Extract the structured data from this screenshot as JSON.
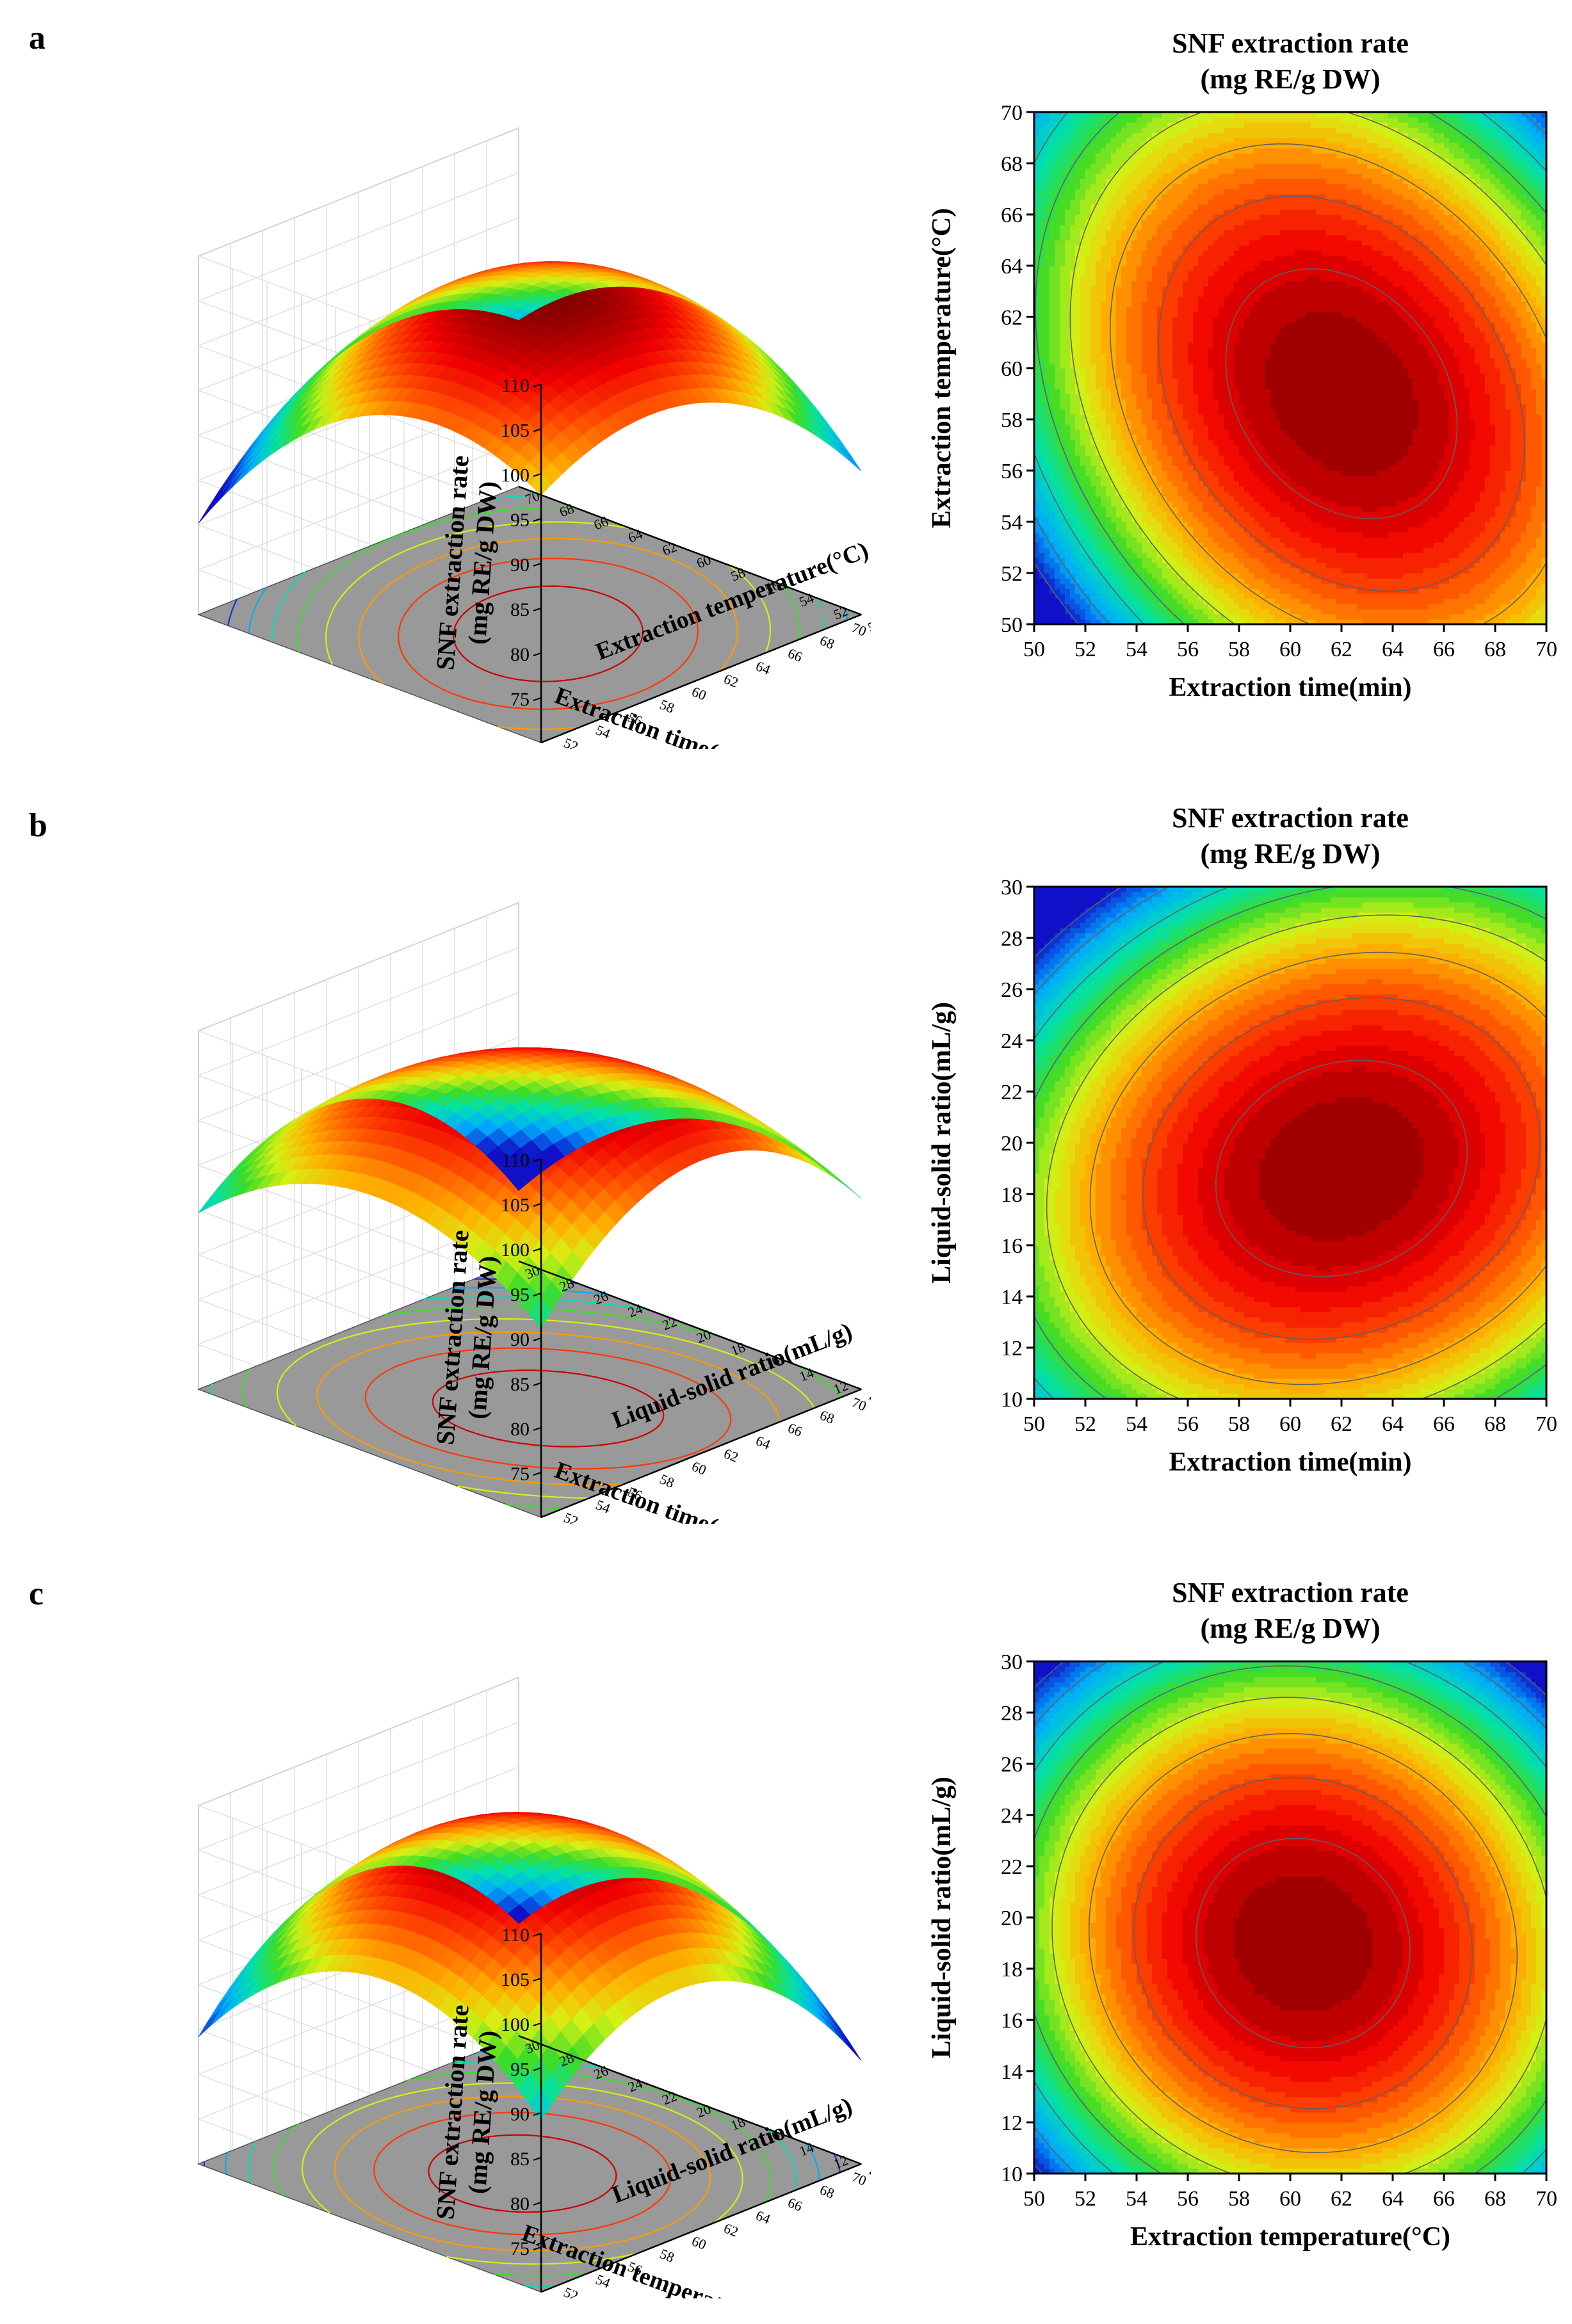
{
  "colors": {
    "surface_low": "#1a1aff",
    "surface_high": "#8b0000",
    "base_plane": "#999999"
  },
  "chart_data": [
    {
      "panel_label": "a",
      "type": "surface3d+contour",
      "title_line1": "SNF extraction rate",
      "title_line2": "(mg RE/g DW)",
      "zlabel_line1": "SNF extraction rate",
      "zlabel_line2": "(mg RE/g DW)",
      "xlabel": "Extraction time(min)",
      "ylabel": "Extraction temperature(°C)",
      "surf_xlabel": "Extraction time(min)",
      "surf_ylabel": "Extraction temperature(°C)",
      "xlim": [
        50,
        70
      ],
      "ylim": [
        50,
        70
      ],
      "zlim": [
        70,
        110
      ],
      "xticks": [
        "50",
        "52",
        "54",
        "56",
        "58",
        "60",
        "62",
        "64",
        "66",
        "68",
        "70"
      ],
      "yticks": [
        "50",
        "52",
        "54",
        "56",
        "58",
        "60",
        "62",
        "64",
        "66",
        "68",
        "70"
      ],
      "zticks": [
        "75",
        "80",
        "85",
        "90",
        "95",
        "100",
        "105",
        "110"
      ],
      "model": {
        "x0": 62,
        "y0": 59,
        "max": 108,
        "a": 0.105,
        "b": 0.09,
        "c": 0.05
      },
      "contour_levels": [
        85,
        88,
        91,
        94,
        97,
        100,
        103,
        106
      ]
    },
    {
      "panel_label": "b",
      "type": "surface3d+contour",
      "title_line1": "SNF  extraction rate",
      "title_line2": "(mg RE/g DW)",
      "zlabel_line1": "SNF extraction rate",
      "zlabel_line2": "(mg RE/g DW)",
      "xlabel": "Extraction time(min)",
      "ylabel": "Liquid-solid ratio(mL/g)",
      "surf_xlabel": "Extraction time(min)",
      "surf_ylabel": "Liquid-solid ratio(mL/g)",
      "xlim": [
        50,
        70
      ],
      "ylim": [
        10,
        30
      ],
      "zlim": [
        70,
        110
      ],
      "xticks": [
        "50",
        "52",
        "54",
        "56",
        "58",
        "60",
        "62",
        "64",
        "66",
        "68",
        "70"
      ],
      "yticks": [
        "10",
        "12",
        "14",
        "16",
        "18",
        "20",
        "22",
        "24",
        "26",
        "28",
        "30"
      ],
      "zticks": [
        "75",
        "80",
        "85",
        "90",
        "95",
        "100",
        "105",
        "110"
      ],
      "model": {
        "x0": 62,
        "y0": 19,
        "max": 108,
        "a": 0.085,
        "b": 0.115,
        "c": -0.03
      },
      "contour_levels": [
        85,
        88,
        91,
        94,
        97,
        100,
        103,
        106
      ]
    },
    {
      "panel_label": "c",
      "type": "surface3d+contour",
      "title_line1": "SNF extraction rate",
      "title_line2": "(mg RE/g DW)",
      "zlabel_line1": "SNF extraction rate",
      "zlabel_line2": "(mg RE/g DW)",
      "xlabel": "Extraction temperature(°C)",
      "ylabel": "Liquid-solid ratio(mL/g)",
      "surf_xlabel": "Extraction temperature(°C)",
      "surf_ylabel": "Liquid-solid ratio(mL/g)",
      "xlim": [
        50,
        70
      ],
      "ylim": [
        10,
        30
      ],
      "zlim": [
        70,
        110
      ],
      "xticks": [
        "50",
        "52",
        "54",
        "56",
        "58",
        "60",
        "62",
        "64",
        "66",
        "68",
        "70"
      ],
      "yticks": [
        "10",
        "12",
        "14",
        "16",
        "18",
        "20",
        "22",
        "24",
        "26",
        "28",
        "30"
      ],
      "zticks": [
        "75",
        "80",
        "85",
        "90",
        "95",
        "100",
        "105",
        "110"
      ],
      "model": {
        "x0": 60.5,
        "y0": 19,
        "max": 108,
        "a": 0.115,
        "b": 0.12,
        "c": 0.015
      },
      "contour_levels": [
        85,
        88,
        91,
        94,
        97,
        100,
        103,
        106
      ]
    }
  ]
}
